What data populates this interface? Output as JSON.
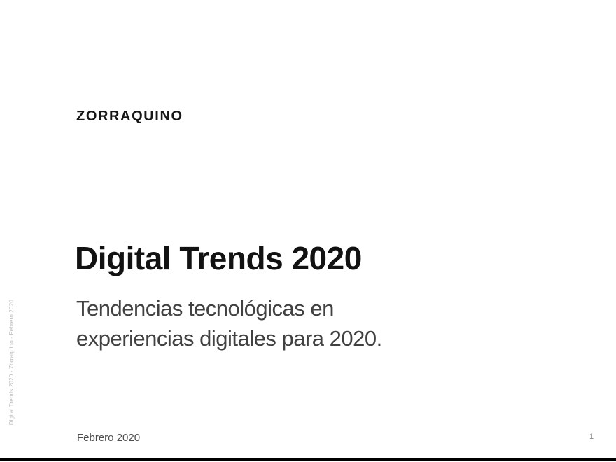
{
  "slide": {
    "brand": "ZORRAQUINO",
    "title": "Digital Trends 2020",
    "subtitle_lines": [
      "Tendencias tecnológicas en",
      "experiencias digitales para 2020."
    ],
    "date": "Febrero 2020",
    "page_number": "1",
    "side_caption": "Digital Trends 2020 - Zorraquino - Febrero 2020"
  },
  "colors": {
    "background": "#ffffff",
    "brand_text": "#161616",
    "title_text": "#121212",
    "subtitle_text": "#414141",
    "date_text": "#4d4d4d",
    "muted_text": "#bcbcbc",
    "page_number_text": "#8a8a8a",
    "bottom_bar": "#000000"
  }
}
